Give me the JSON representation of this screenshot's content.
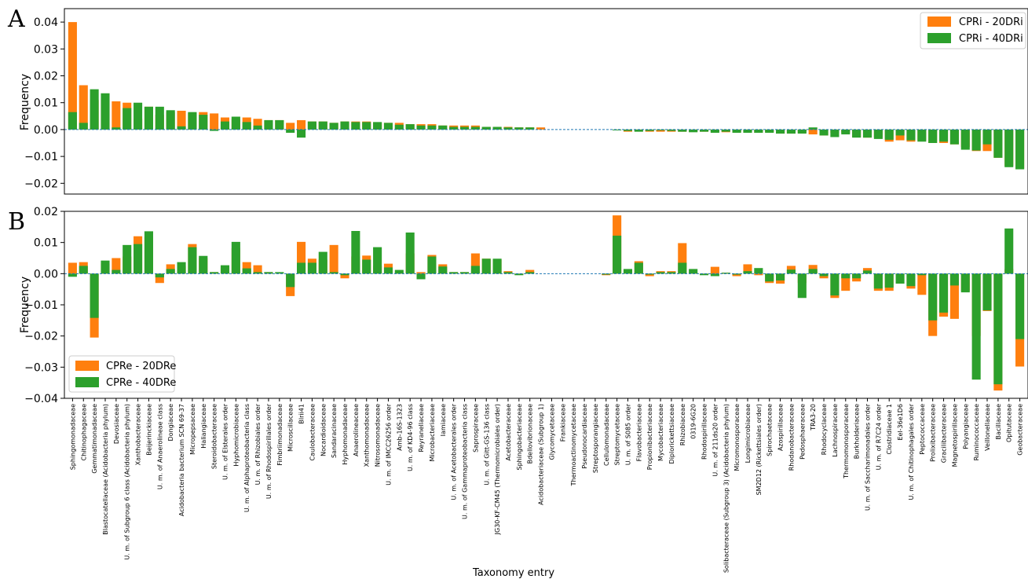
{
  "colors": {
    "series_20": "#ff7f0e",
    "series_40": "#2ca02c",
    "zero_line": "#1f77b4"
  },
  "chart_data": [
    {
      "type": "bar",
      "panel_label": "A",
      "ylabel": "Frequency",
      "ylim": [
        -0.024,
        0.045
      ],
      "yticks": [
        -0.02,
        -0.01,
        0.0,
        0.01,
        0.02,
        0.03,
        0.04
      ],
      "ytick_labels": [
        "−0.02",
        "−0.01",
        "0.00",
        "0.01",
        "0.02",
        "0.03",
        "0.04"
      ],
      "legend_position": "top-right",
      "series": [
        {
          "name": "CPRi - 20DRi",
          "values": [
            0.04,
            0.0165,
            0.011,
            0.011,
            0.0105,
            0.01,
            0.004,
            0.0085,
            0.0055,
            0.0065,
            0.007,
            0.006,
            0.0065,
            0.006,
            0.0045,
            0.004,
            0.0045,
            0.004,
            0.0035,
            0.0035,
            0.0025,
            0.0035,
            0.003,
            0.003,
            0.0025,
            0.003,
            0.003,
            0.003,
            0.0025,
            0.0025,
            0.0025,
            0.002,
            0.002,
            0.002,
            0.0015,
            0.0015,
            0.0015,
            0.0015,
            0.001,
            0.001,
            0.001,
            0.0008,
            0.0008,
            0.0008,
            0,
            0,
            0,
            0,
            0,
            0,
            0,
            -0.0008,
            -0.0005,
            -0.0008,
            -0.0008,
            -0.0008,
            -0.0008,
            -0.0008,
            -0.0008,
            -0.0008,
            -0.001,
            -0.001,
            -0.001,
            -0.0012,
            -0.001,
            -0.0015,
            -0.0015,
            -0.0012,
            -0.0018,
            -0.0022,
            -0.0012,
            -0.0012,
            -0.0028,
            -0.003,
            -0.003,
            -0.0045,
            -0.004,
            -0.0045,
            -0.004,
            -0.005,
            -0.005,
            -0.0055,
            -0.0065,
            -0.008,
            -0.008,
            -0.0105,
            -0.0135,
            -0.0145,
            -0.016,
            -0.017,
            -0.0185
          ]
        },
        {
          "name": "CPRi - 40DRi",
          "values": [
            0.0065,
            0.0025,
            0.015,
            0.0135,
            0.0008,
            0.008,
            0.01,
            0.0085,
            0.0085,
            0.0072,
            0.0012,
            0.0065,
            0.0055,
            -0.0005,
            0.003,
            0.0048,
            0.0028,
            0.0015,
            0.0035,
            0.0035,
            -0.0012,
            -0.003,
            0.003,
            0.003,
            0.0025,
            0.003,
            0.0028,
            0.0028,
            0.0028,
            0.0025,
            0.0018,
            0.002,
            0.0015,
            0.0015,
            0.0015,
            0.001,
            0.001,
            0.001,
            0.001,
            0.001,
            0.0008,
            0.0008,
            0.0008,
            0,
            0,
            0,
            0,
            0,
            0,
            0,
            -0.0003,
            -0.0005,
            -0.0008,
            -0.0005,
            -0.0003,
            -0.0005,
            -0.0008,
            -0.001,
            -0.0008,
            -0.0012,
            -0.0008,
            -0.0012,
            -0.0012,
            -0.0012,
            -0.0012,
            -0.0015,
            -0.0015,
            -0.0015,
            0.0008,
            -0.0022,
            -0.0028,
            -0.0018,
            -0.003,
            -0.003,
            -0.0035,
            -0.0038,
            -0.0022,
            -0.004,
            -0.0045,
            -0.005,
            -0.0045,
            -0.0055,
            -0.0075,
            -0.0078,
            -0.0055,
            -0.0105,
            -0.014,
            -0.0148,
            -0.013,
            0.002,
            -0.0195
          ]
        }
      ]
    },
    {
      "type": "bar",
      "panel_label": "B",
      "ylabel": "Frequency",
      "ylim": [
        -0.04,
        0.02
      ],
      "yticks": [
        -0.04,
        -0.03,
        -0.02,
        -0.01,
        0.0,
        0.01,
        0.02
      ],
      "ytick_labels": [
        "−0.04",
        "−0.03",
        "−0.02",
        "−0.01",
        "0.00",
        "0.01",
        "0.02"
      ],
      "legend_position": "lower-left",
      "xlabel": "Taxonomy entry",
      "categories": [
        "Sphingomonadaceae",
        "Chitinophagaceae",
        "Gemmatimonadaceae",
        "Blastocatellaceae (Acidobacteria phylum)",
        "Devosiaceae",
        "U. m. of Subgroup 6 class (Acidobacteria phylum)",
        "Xanthobacteraceae",
        "Beijerinckiaceae",
        "U. m. of Anaerolineae class",
        "Dongiaceae",
        "Acidobacteria bacterium SCN 69-37",
        "Micropepsaceae",
        "Haliangiaceae",
        "Steroidobacteraceae",
        "U. m. of Elsterales order",
        "Hyphomicrobiaceae",
        "U. m. of Alphaproteobacteria class",
        "U. m. of Rhizobiales order",
        "U. m. of Rhodospirillales order",
        "Fimbriimonadaceae",
        "Microscillaceae",
        "Blrii41",
        "Caulobacteraceae",
        "Nocardioidaceae",
        "Sandaracinaceae",
        "Hyphomonadaceae",
        "Anaerolineaceae",
        "Xanthomonadaceae",
        "Nitrosomonadaceae",
        "U. m. of IMCC26256 order",
        "Amb-16S-1323",
        "U. m. of KD4-96 class",
        "Reyranellaceae",
        "Microbacteriaceae",
        "Iamiaceae",
        "U. m. of Acetobacterales order",
        "U. m. of Gammaproteobacteria class",
        "Saprospiraceae",
        "U. m. of Gitt-GS-136 class",
        "JG30-KF-CM45 (Thermomicrobiales order)",
        "Acetobacteraceae",
        "Sphingobacteriaceae",
        "Bdellovibrionaceae",
        "Acidobacteriaceae (Subgroup 1)",
        "Glycomycetaceae",
        "Frankiaceae",
        "Thermoactinomycetaceae",
        "Pseudonocardiaceae",
        "Streptosporangiaceae",
        "Cellulomonadaceae",
        "Streptomycetaceae",
        "U. m. of S085 order",
        "Flavobacteriaceae",
        "Propionibacteriaceae",
        "Mycobacteriaceae",
        "Diplorickettsiaceae",
        "Rhizobiaceae",
        "0319-6G20",
        "Rhodospirillaceae",
        "U. m. of 211ds20 order",
        "Solibacteraceae (Subgroup 3) (Acidobacteria phylum)",
        "Micromonosporaceae",
        "Longimicrobiaceae",
        "SM2D12 (Rickettsiales order)",
        "Spirochaetaceae",
        "Azospirillaceae",
        "Rhodanobacteraceae",
        "Pedosphaeraceae",
        "TRA3-20",
        "Rhodocyclaceae",
        "Lachnospiraceae",
        "Thermomonosporaceae",
        "Burkholderiaceae",
        "U. m. of Saccharimonadales order",
        "U. m. of R7C24 order",
        "Clostridiaceae 1",
        "Eel-36e1D6",
        "U. m. of Chitinophagales order",
        "Peptococcaceae",
        "Prolixibacteraceae",
        "Gracilibacteraceae",
        "Magnetospirillaceae",
        "Polyangiaceae",
        "Ruminococcaceae",
        "Veillonellaceae",
        "Bacillaceae",
        "Opitutaceae",
        "Geobacteraceae"
      ],
      "series": [
        {
          "name": "CPRe - 20DRe",
          "values": [
            0.0035,
            0.0037,
            -0.0205,
            0.0032,
            0.005,
            0.0055,
            0.012,
            0.0118,
            -0.003,
            0.003,
            0.0025,
            0.0095,
            0.005,
            0.0005,
            0.002,
            0.0082,
            0.0037,
            0.0027,
            0.0005,
            0,
            -0.0072,
            0.0102,
            0.0048,
            0.0045,
            0.0092,
            -0.0015,
            0.0055,
            0.0058,
            0.0025,
            0.0032,
            0.0005,
            0.0065,
            0.0005,
            0.006,
            0.003,
            0.0005,
            0.0005,
            0.0065,
            0.0048,
            0.0045,
            0.0008,
            -0.0003,
            0.0012,
            0,
            0,
            0,
            0,
            0,
            0,
            -0.0005,
            0.0187,
            0.0012,
            0.004,
            -0.0008,
            0.0008,
            0.0008,
            0.0098,
            0.0005,
            -0.0003,
            0.0022,
            0.0003,
            -0.0008,
            0.003,
            -0.0005,
            -0.003,
            -0.0032,
            0.0025,
            -0.003,
            0.0028,
            -0.0015,
            -0.0078,
            -0.0055,
            -0.0025,
            0.0018,
            -0.0055,
            -0.0055,
            -0.0002,
            -0.0048,
            -0.0068,
            -0.02,
            -0.0138,
            -0.0145,
            -0.0055,
            -0.02,
            -0.012,
            -0.0375,
            0.0015,
            -0.0298
          ]
        },
        {
          "name": "CPRe - 40DRe",
          "values": [
            -0.001,
            0.0025,
            -0.0142,
            0.0042,
            0.0012,
            0.0092,
            0.0095,
            0.0136,
            -0.0012,
            0.0015,
            0.0037,
            0.0085,
            0.0057,
            0.0005,
            0.0027,
            0.0102,
            0.0017,
            0.0005,
            0.0005,
            0.0005,
            -0.0043,
            0.0035,
            0.0035,
            0.007,
            0.0005,
            -0.0005,
            0.0137,
            0.0045,
            0.0085,
            0.002,
            0.0012,
            0.0132,
            -0.0018,
            0.0055,
            0.0023,
            0.0005,
            0.0005,
            0.0025,
            0.0048,
            0.0048,
            0.0005,
            -0.0005,
            0.0005,
            0,
            0,
            0,
            0,
            0,
            0,
            -0.0003,
            0.0122,
            0.0015,
            0.0035,
            -0.0003,
            0.0005,
            0.0005,
            0.0035,
            0.0015,
            -0.0005,
            -0.0008,
            0.0003,
            -0.0003,
            0.0008,
            0.0018,
            -0.0025,
            -0.0022,
            0.0013,
            -0.0078,
            0.0015,
            -0.0008,
            -0.007,
            -0.0015,
            -0.0015,
            0.001,
            -0.0048,
            -0.0045,
            -0.0032,
            -0.004,
            -0.0005,
            -0.015,
            -0.0125,
            -0.0038,
            -0.006,
            -0.034,
            -0.0118,
            -0.0355,
            0.0145,
            -0.021
          ]
        }
      ]
    }
  ]
}
